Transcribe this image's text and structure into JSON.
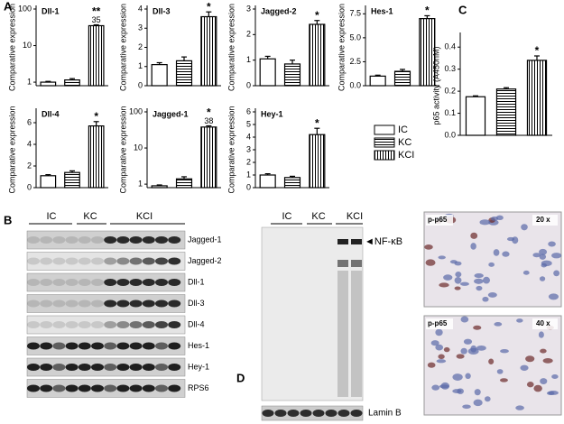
{
  "chart_data": [
    {
      "type": "bar",
      "title": "Dll-1",
      "y_label": "Comparative expression",
      "categories": [
        null,
        null,
        null
      ],
      "values": [
        1.0,
        1.15,
        35
      ],
      "errors": [
        0.05,
        0.1,
        2
      ],
      "log_scale": true,
      "ylim": [
        0.8,
        100
      ],
      "yticks": [
        1,
        10,
        100
      ],
      "annotations": [
        "**",
        "35"
      ]
    },
    {
      "type": "bar",
      "title": "Dll-3",
      "y_label": "Comparative expression",
      "categories": [
        null,
        null,
        null
      ],
      "values": [
        1.1,
        1.3,
        3.6
      ],
      "errors": [
        0.1,
        0.2,
        0.25
      ],
      "ylim": [
        0,
        4
      ],
      "yticks": [
        0,
        1,
        2,
        3,
        4
      ],
      "annotations": [
        "*"
      ]
    },
    {
      "type": "bar",
      "title": "Jagged-2",
      "y_label": "Comparative expression",
      "categories": [
        null,
        null,
        null
      ],
      "values": [
        1.05,
        0.85,
        2.4
      ],
      "errors": [
        0.1,
        0.15,
        0.15
      ],
      "ylim": [
        0,
        3
      ],
      "yticks": [
        0,
        1,
        2,
        3
      ],
      "annotations": [
        "*"
      ]
    },
    {
      "type": "bar",
      "title": "Hes-1",
      "y_label": "Comparative expression",
      "categories": [
        null,
        null,
        null
      ],
      "values": [
        1.0,
        1.5,
        7.0
      ],
      "errors": [
        0.1,
        0.2,
        0.3
      ],
      "ylim": [
        0,
        8
      ],
      "yticks": [
        {
          "value": 0,
          "label": "0.0"
        },
        2.5,
        {
          "value": 5,
          "label": "5.0"
        },
        7.5
      ],
      "annotations": [
        "*"
      ]
    },
    {
      "type": "bar",
      "title": "Dll-4",
      "y_label": "Comparative expression",
      "categories": [
        null,
        null,
        null
      ],
      "values": [
        1.1,
        1.4,
        5.7
      ],
      "errors": [
        0.1,
        0.15,
        0.4
      ],
      "ylim": [
        0,
        7
      ],
      "yticks": [
        0,
        2,
        4,
        6
      ],
      "annotations": [
        "*"
      ]
    },
    {
      "type": "bar",
      "title": "Jagged-1",
      "y_label": "Comparative expression",
      "categories": [
        null,
        null,
        null
      ],
      "values": [
        0.9,
        1.4,
        38
      ],
      "errors": [
        0.05,
        0.2,
        3
      ],
      "log_scale": true,
      "ylim": [
        0.8,
        100
      ],
      "yticks": [
        1,
        10,
        100
      ],
      "annotations": [
        "*",
        "38"
      ]
    },
    {
      "type": "bar",
      "title": "Hey-1",
      "y_label": "Comparative expression",
      "categories": [
        null,
        null,
        null
      ],
      "values": [
        1.0,
        0.8,
        4.2
      ],
      "errors": [
        0.1,
        0.1,
        0.5
      ],
      "ylim": [
        0,
        6
      ],
      "yticks": [
        0,
        1,
        2,
        3,
        4,
        5,
        6
      ],
      "annotations": [
        "*"
      ]
    },
    {
      "type": "bar",
      "y_label": "p65 activity (A450nM)",
      "categories": [
        null,
        null,
        null
      ],
      "values": [
        0.175,
        0.21,
        0.34
      ],
      "errors": [
        0.004,
        0.006,
        0.02
      ],
      "ylim": [
        0,
        0.45
      ],
      "yticks": [
        {
          "value": 0,
          "label": "0.0"
        },
        0.1,
        0.2,
        0.3,
        0.4
      ],
      "annotations": [
        "*"
      ]
    }
  ],
  "panel_labels": [
    "A",
    "B",
    "C",
    "D"
  ],
  "legend": [
    "IC",
    "KC",
    "KCI"
  ],
  "blot_b": {
    "groups": [
      "IC",
      "KC",
      "KCI"
    ],
    "bands": [
      "Jagged-1",
      "Jagged-2",
      "Dll-1",
      "Dll-3",
      "Dll-4",
      "Hes-1",
      "Hey-1",
      "RPS6"
    ]
  },
  "blot_d": {
    "groups": [
      "IC",
      "KC",
      "KCI"
    ],
    "marker": "◄NF-κB",
    "loading": "Lamin B"
  },
  "micrographs": [
    {
      "stain": "p-p65",
      "magnification": "20 x"
    },
    {
      "stain": "p-p65",
      "magnification": "40 x"
    }
  ]
}
